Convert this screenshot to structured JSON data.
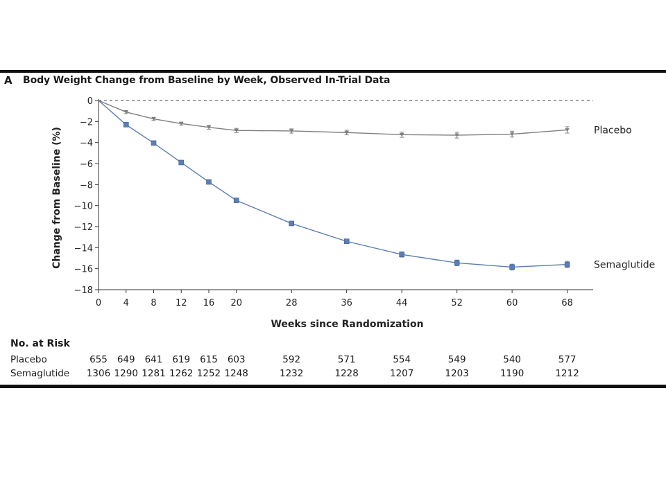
{
  "panel_label": "A",
  "chart_data": {
    "type": "line",
    "title": "Body Weight Change from Baseline by Week, Observed In-Trial Data",
    "xlabel": "Weeks since Randomization",
    "ylabel": "Change from Baseline (%)",
    "x": [
      0,
      4,
      8,
      12,
      16,
      20,
      28,
      36,
      44,
      52,
      60,
      68
    ],
    "xlim": [
      0,
      70
    ],
    "ylim": [
      -18,
      0
    ],
    "xticks": [
      "0",
      "4",
      "8",
      "12",
      "16",
      "20",
      "28",
      "36",
      "44",
      "52",
      "60",
      "68"
    ],
    "yticks": [
      "0",
      "−2",
      "−4",
      "−6",
      "−8",
      "−10",
      "−12",
      "−14",
      "−16",
      "−18"
    ],
    "reference_line": 0,
    "series": [
      {
        "name": "Placebo",
        "color": "#7f7f7f",
        "marker": "triangle-down",
        "values": [
          0,
          -1.1,
          -1.75,
          -2.2,
          -2.55,
          -2.85,
          -2.9,
          -3.05,
          -3.25,
          -3.3,
          -3.2,
          -2.8
        ]
      },
      {
        "name": "Semaglutide",
        "color": "#5b7fb5",
        "marker": "square",
        "values": [
          0,
          -2.3,
          -4.05,
          -5.9,
          -7.75,
          -9.5,
          -11.7,
          -13.4,
          -14.65,
          -15.45,
          -15.85,
          -15.6
        ]
      }
    ]
  },
  "risk_table": {
    "header": "No. at Risk",
    "rows": [
      {
        "label": "Placebo",
        "values": [
          "655",
          "649",
          "641",
          "619",
          "615",
          "603",
          "592",
          "571",
          "554",
          "549",
          "540",
          "577"
        ]
      },
      {
        "label": "Semaglutide",
        "values": [
          "1306",
          "1290",
          "1281",
          "1262",
          "1252",
          "1248",
          "1232",
          "1228",
          "1207",
          "1203",
          "1190",
          "1212"
        ]
      }
    ]
  }
}
